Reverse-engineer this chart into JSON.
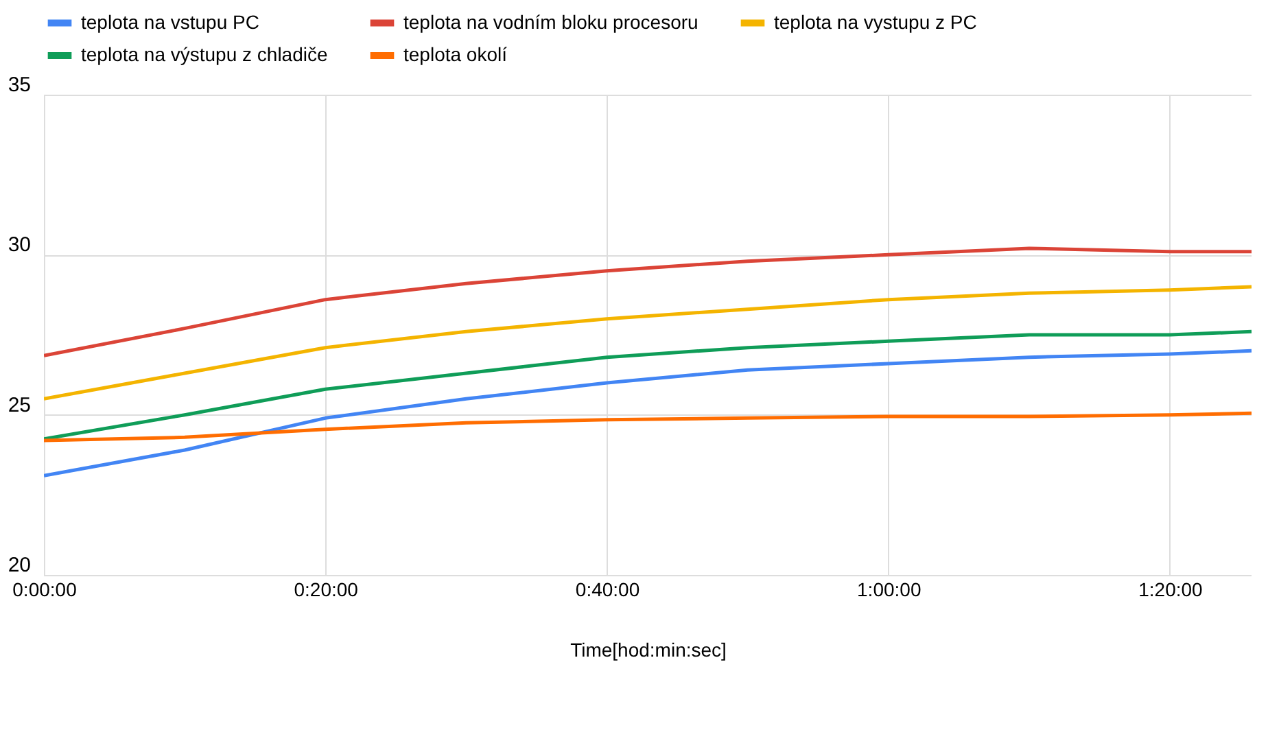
{
  "chart_data": {
    "type": "line",
    "xlabel": "Time[hod:min:sec]",
    "x": [
      0,
      0.1667,
      0.3333,
      0.5,
      0.6667,
      0.8333,
      1,
      1.1667,
      1.3333,
      1.43
    ],
    "series": [
      {
        "name": "teplota na vstupu PC",
        "color": "#4285f4",
        "values": [
          23.1,
          23.9,
          24.9,
          25.5,
          26.0,
          26.4,
          26.6,
          26.8,
          26.9,
          27.0
        ]
      },
      {
        "name": "teplota na vodním bloku procesoru",
        "color": "#db4437",
        "values": [
          26.85,
          27.7,
          28.6,
          29.1,
          29.5,
          29.8,
          30.0,
          30.2,
          30.1,
          30.1
        ]
      },
      {
        "name": "teplota na vystupu z PC",
        "color": "#f4b400",
        "values": [
          25.5,
          26.3,
          27.1,
          27.6,
          28.0,
          28.3,
          28.6,
          28.8,
          28.9,
          29.0
        ]
      },
      {
        "name": "teplota na výstupu z chladiče",
        "color": "#0f9d58",
        "values": [
          24.25,
          25.0,
          25.8,
          26.3,
          26.8,
          27.1,
          27.3,
          27.5,
          27.5,
          27.6
        ]
      },
      {
        "name": "teplota okolí",
        "color": "#ff6d01",
        "values": [
          24.2,
          24.3,
          24.55,
          24.75,
          24.85,
          24.9,
          24.95,
          24.95,
          25.0,
          25.05
        ]
      }
    ],
    "xlim": [
      0,
      1.43
    ],
    "xticks": [
      {
        "value": 0,
        "label": "0:00:00"
      },
      {
        "value": 0.3333,
        "label": "0:20:00"
      },
      {
        "value": 0.6667,
        "label": "0:40:00"
      },
      {
        "value": 1,
        "label": "1:00:00"
      },
      {
        "value": 1.3333,
        "label": "1:20:00"
      }
    ],
    "ylim": [
      20,
      35
    ],
    "yticks": [
      20,
      25,
      30,
      35
    ],
    "grid": true,
    "legend": "top",
    "marker": "none",
    "line_style": "solid"
  }
}
